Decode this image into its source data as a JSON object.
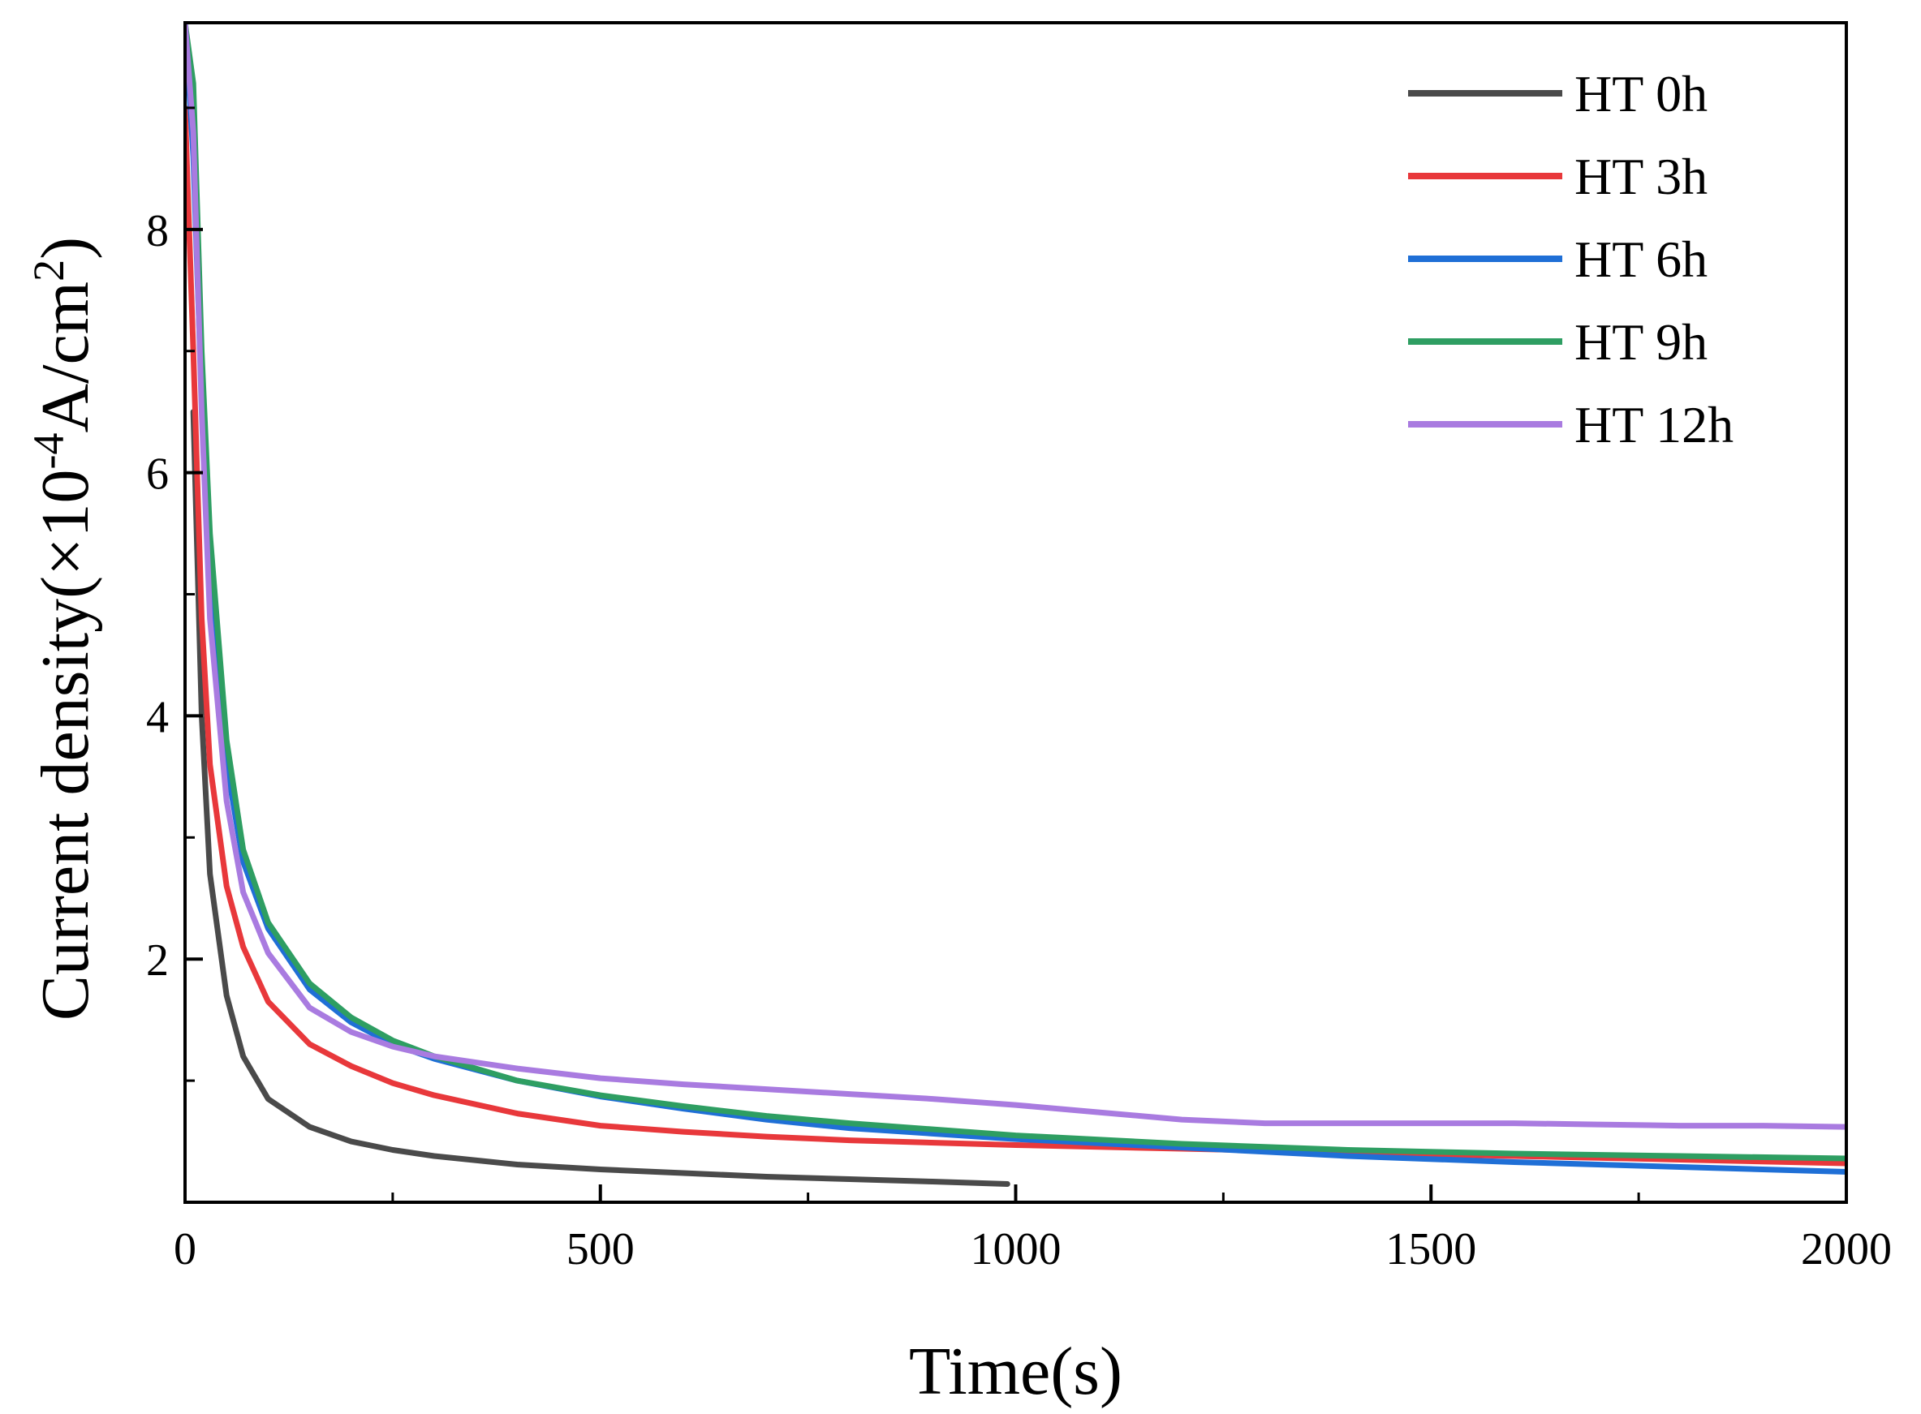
{
  "chart_data": {
    "type": "line",
    "title": "",
    "xlabel": "Time(s)",
    "ylabel": {
      "main": "Current density(×10",
      "exp": "-4",
      "unit": "A/cm",
      "unit_exp": "2",
      "close": ")"
    },
    "xlim": [
      0,
      2000
    ],
    "ylim": [
      0,
      9.7
    ],
    "x_ticks": [
      0,
      500,
      1000,
      1500,
      2000
    ],
    "x_tick_labels": [
      "0",
      "500",
      "1000",
      "1500",
      "2000"
    ],
    "x_minor_ticks": [
      250,
      750,
      1250,
      1750
    ],
    "y_ticks": [
      2,
      4,
      6,
      8
    ],
    "y_tick_labels": [
      "2",
      "4",
      "6",
      "8"
    ],
    "y_minor_ticks": [
      1,
      3,
      5,
      7,
      9
    ],
    "legend_position": "top-right",
    "series": [
      {
        "name": "HT 0h",
        "color": "#4a4a4a",
        "x": [
          10,
          20,
          30,
          50,
          70,
          100,
          150,
          200,
          250,
          300,
          400,
          500,
          600,
          700,
          800,
          900,
          990
        ],
        "y": [
          6.5,
          4.0,
          2.7,
          1.7,
          1.2,
          0.85,
          0.62,
          0.5,
          0.43,
          0.38,
          0.31,
          0.27,
          0.24,
          0.21,
          0.19,
          0.17,
          0.15
        ]
      },
      {
        "name": "HT 3h",
        "color": "#e8383b",
        "x": [
          0,
          10,
          20,
          30,
          50,
          70,
          100,
          150,
          200,
          250,
          300,
          400,
          500,
          600,
          700,
          800,
          1000,
          1200,
          1400,
          1600,
          1800,
          2000
        ],
        "y": [
          9.0,
          7.0,
          4.8,
          3.6,
          2.6,
          2.1,
          1.65,
          1.3,
          1.12,
          0.98,
          0.88,
          0.73,
          0.63,
          0.58,
          0.54,
          0.51,
          0.47,
          0.44,
          0.41,
          0.38,
          0.35,
          0.32
        ]
      },
      {
        "name": "HT 6h",
        "color": "#1f6fd6",
        "x": [
          0,
          10,
          20,
          30,
          50,
          70,
          100,
          150,
          200,
          250,
          300,
          400,
          500,
          600,
          700,
          800,
          1000,
          1200,
          1400,
          1600,
          1800,
          2000
        ],
        "y": [
          9.7,
          8.6,
          6.6,
          5.2,
          3.6,
          2.8,
          2.25,
          1.75,
          1.48,
          1.3,
          1.18,
          1.0,
          0.87,
          0.77,
          0.68,
          0.61,
          0.52,
          0.45,
          0.38,
          0.33,
          0.29,
          0.25
        ]
      },
      {
        "name": "HT 9h",
        "color": "#2e9e62",
        "x": [
          0,
          10,
          20,
          30,
          50,
          70,
          100,
          150,
          200,
          250,
          300,
          400,
          500,
          600,
          700,
          800,
          1000,
          1200,
          1400,
          1600,
          1800,
          2000
        ],
        "y": [
          9.7,
          9.2,
          7.0,
          5.5,
          3.8,
          2.9,
          2.3,
          1.8,
          1.52,
          1.33,
          1.2,
          1.0,
          0.88,
          0.79,
          0.71,
          0.65,
          0.55,
          0.48,
          0.43,
          0.4,
          0.38,
          0.36
        ]
      },
      {
        "name": "HT 12h",
        "color": "#a97be0",
        "x": [
          0,
          10,
          20,
          30,
          50,
          70,
          100,
          150,
          200,
          250,
          300,
          400,
          500,
          600,
          700,
          800,
          900,
          1000,
          1100,
          1200,
          1300,
          1400,
          1500,
          1600,
          1700,
          1800,
          1900,
          2000
        ],
        "y": [
          9.7,
          8.8,
          6.5,
          4.8,
          3.3,
          2.55,
          2.05,
          1.6,
          1.4,
          1.28,
          1.2,
          1.1,
          1.02,
          0.97,
          0.93,
          0.89,
          0.85,
          0.8,
          0.74,
          0.68,
          0.65,
          0.65,
          0.65,
          0.65,
          0.64,
          0.63,
          0.63,
          0.62
        ]
      }
    ]
  }
}
